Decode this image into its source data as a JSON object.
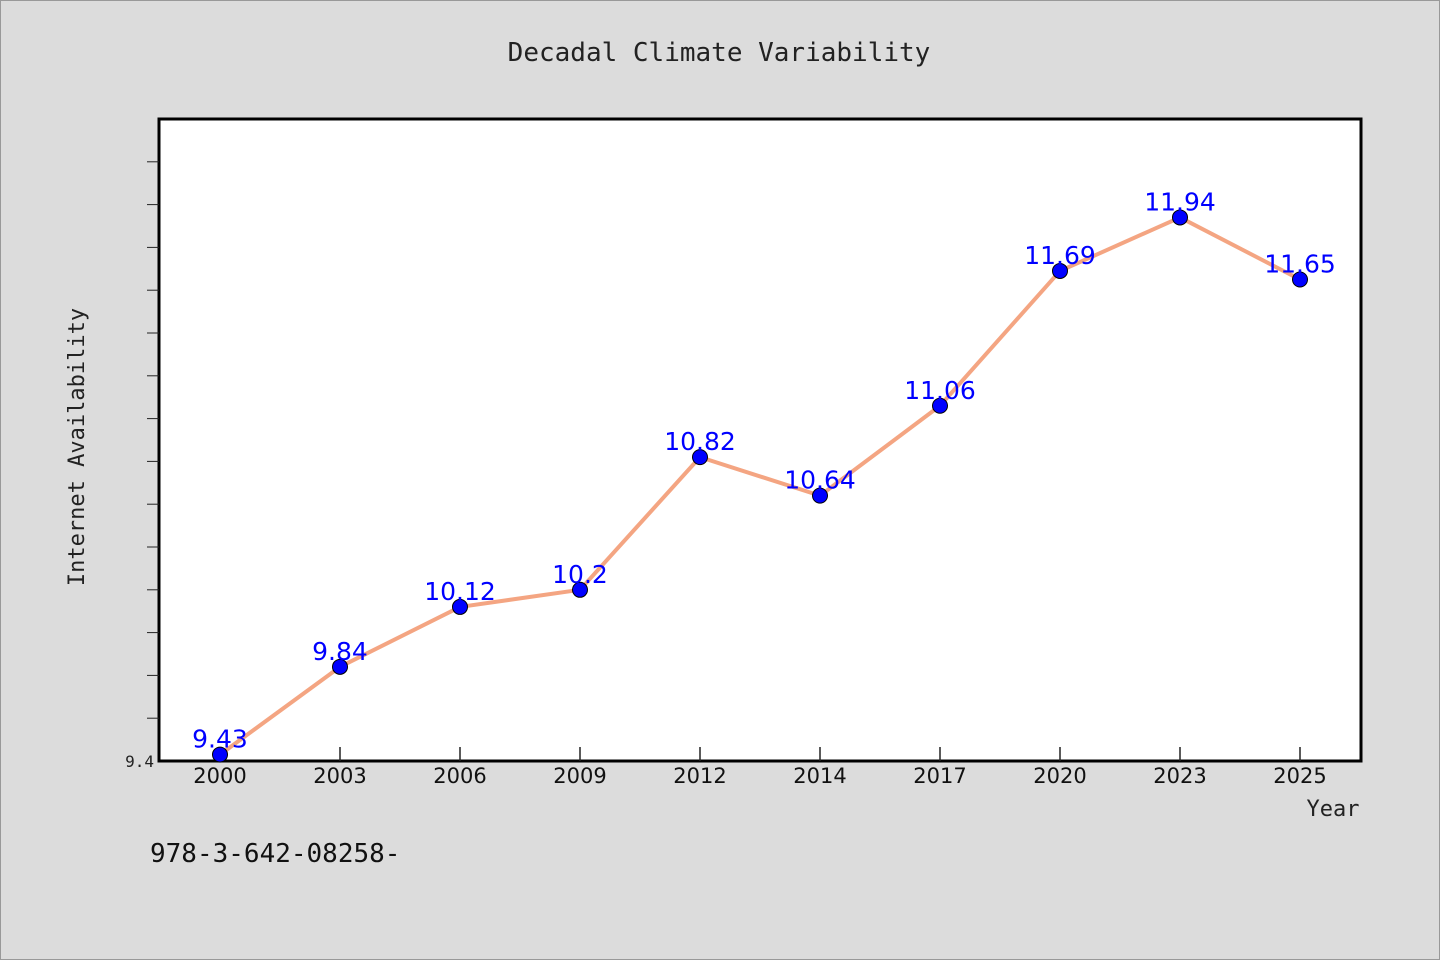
{
  "chart_data": {
    "type": "line",
    "title": "Decadal Climate Variability",
    "xlabel": "Year",
    "ylabel": "Internet Availability",
    "categories": [
      "2000",
      "2003",
      "2006",
      "2009",
      "2012",
      "2014",
      "2017",
      "2020",
      "2023",
      "2025"
    ],
    "series": [
      {
        "values": [
          9.43,
          9.84,
          10.12,
          10.2,
          10.82,
          10.64,
          11.06,
          11.69,
          11.94,
          11.65
        ],
        "labels": [
          "9.43",
          "9.84",
          "10.12",
          "10.2",
          "10.82",
          "10.64",
          "11.06",
          "11.69",
          "11.94",
          "11.65"
        ],
        "line_color": "#f4a582",
        "marker_color": "#0000ff"
      }
    ],
    "ylim": [
      9.4,
      12.4
    ],
    "yticks_labeled": [
      "9.4"
    ],
    "grid": false,
    "legend": "none"
  },
  "footer_text": "978-3-642-08258-"
}
